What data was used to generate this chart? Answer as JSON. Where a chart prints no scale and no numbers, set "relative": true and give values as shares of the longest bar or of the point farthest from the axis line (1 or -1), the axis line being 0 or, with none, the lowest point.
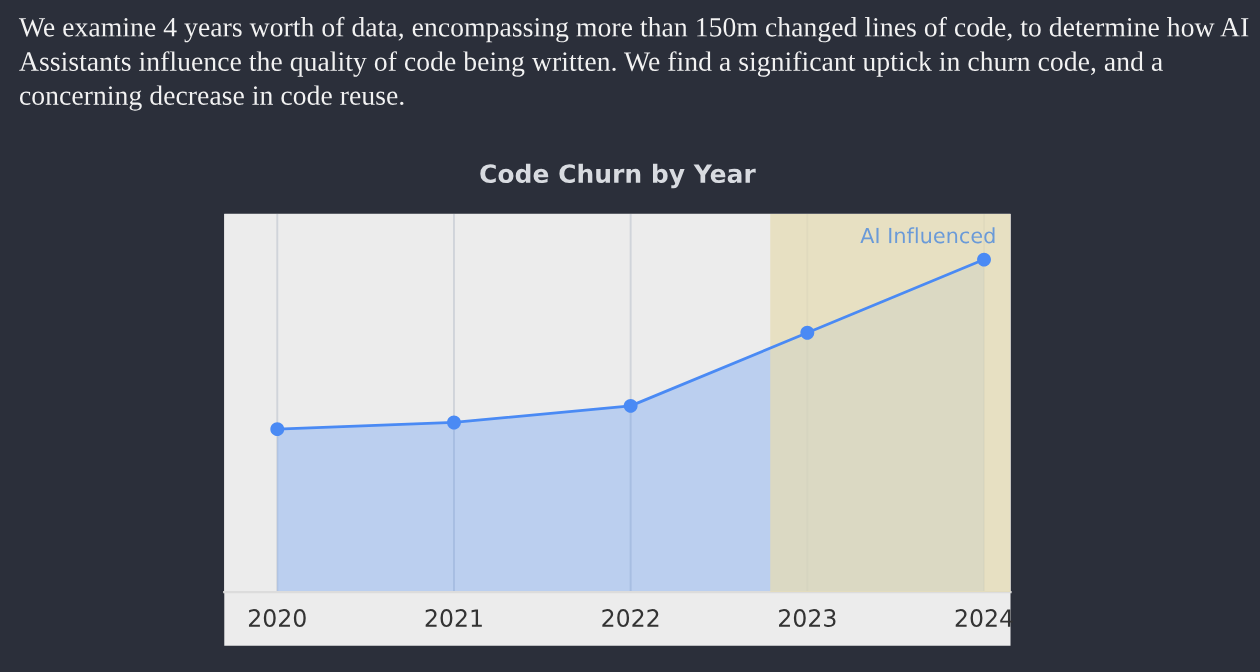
{
  "chart_data": {
    "type": "area",
    "title": "Code Churn by Year",
    "annotations": [
      "We examine 4 years worth of data, encompassing more than 150m changed lines of code, to determine how AI Assistants influence the quality of code being written. We find a significant uptick in churn code, and a concerning decrease in code reuse."
    ],
    "x": [
      2020,
      2021,
      2022,
      2023,
      2024
    ],
    "xlim": [
      2019.7,
      2024.15
    ],
    "xticks": [
      2020,
      2021,
      2022,
      2023,
      2024
    ],
    "relative": true,
    "series": [
      {
        "color": "#4a8af4",
        "values": [
          0.49,
          0.51,
          0.56,
          0.78,
          1
        ]
      }
    ],
    "bands": [
      {
        "axis": "x",
        "from": 2022.79,
        "to": 2024.15,
        "label": "AI Influenced",
        "color": "#e6dcb4"
      }
    ],
    "marker": "circle",
    "grid": "x",
    "legend": false
  }
}
